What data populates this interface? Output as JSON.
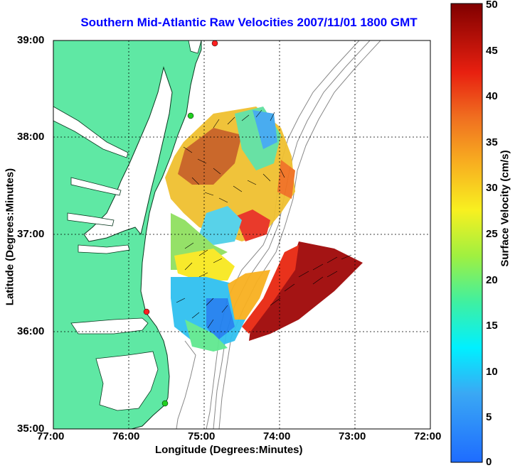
{
  "title": "Southern Mid-Atlantic Raw Velocities 2007/11/01 1800 GMT",
  "title_color": "#0000ff",
  "xlabel": "Longitude (Degrees:Minutes)",
  "ylabel": "Latitude (Degrees:Minutes)",
  "colorbar": {
    "label": "Surface Velocity (cm/s)",
    "ticks": [
      "0",
      "5",
      "10",
      "15",
      "20",
      "25",
      "30",
      "35",
      "40",
      "45",
      "50"
    ]
  },
  "x_ticks": [
    "77:00",
    "76:00",
    "75:00",
    "74:00",
    "73:00",
    "72:00"
  ],
  "y_ticks": [
    "39:00",
    "38:00",
    "37:00",
    "36:00",
    "35:00"
  ],
  "colors": {
    "land": "#5fe8a4",
    "ocean": "#ffffff",
    "isobath": "#888888",
    "station_red": "#ff2020",
    "station_green": "#20d020"
  }
}
